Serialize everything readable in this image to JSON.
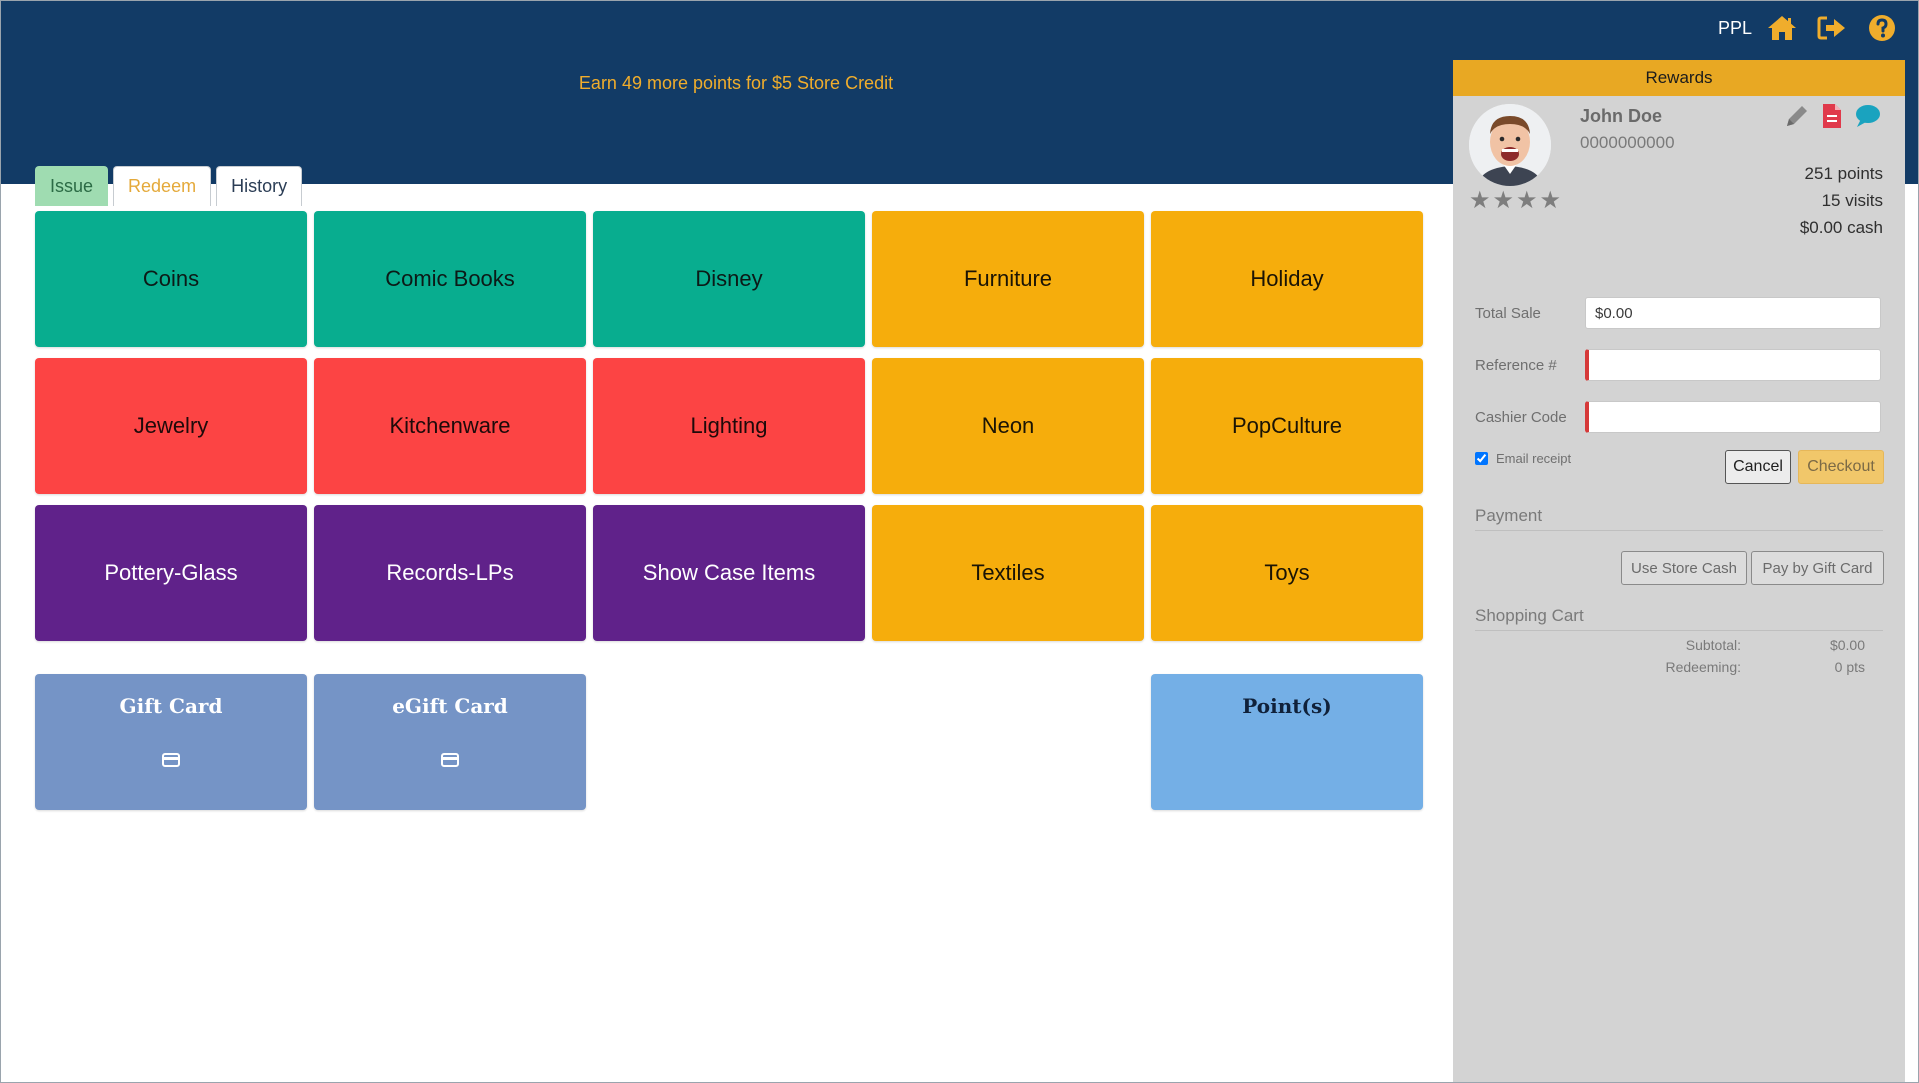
{
  "header": {
    "promo_text": "Earn 49 more points for $5 Store Credit",
    "user_label": "PPL",
    "icons": [
      "home-icon",
      "logout-icon",
      "help-icon"
    ],
    "background_color": "#123b66",
    "accent_color": "#f0ad2c"
  },
  "tabs": [
    {
      "label": "Issue",
      "active": true
    },
    {
      "label": "Redeem",
      "active": false
    },
    {
      "label": "History",
      "active": false
    }
  ],
  "categories": [
    {
      "label": "Coins",
      "color": "#08ad8f"
    },
    {
      "label": "Comic Books",
      "color": "#08ad8f"
    },
    {
      "label": "Disney",
      "color": "#08ad8f"
    },
    {
      "label": "Furniture",
      "color": "#f6ad0c"
    },
    {
      "label": "Holiday",
      "color": "#f6ad0c"
    },
    {
      "label": "Jewelry",
      "color": "#fc4444"
    },
    {
      "label": "Kitchenware",
      "color": "#fc4444"
    },
    {
      "label": "Lighting",
      "color": "#fc4444"
    },
    {
      "label": "Neon",
      "color": "#f6ad0c"
    },
    {
      "label": "PopCulture",
      "color": "#f6ad0c"
    },
    {
      "label": "Pottery-Glass",
      "color": "#60228a"
    },
    {
      "label": "Records-LPs",
      "color": "#60228a"
    },
    {
      "label": "Show Case Items",
      "color": "#60228a"
    },
    {
      "label": "Textiles",
      "color": "#f6ad0c"
    },
    {
      "label": "Toys",
      "color": "#f6ad0c"
    }
  ],
  "special_tiles": [
    {
      "label": "Gift Card",
      "icon": "credit-card-icon",
      "color": "#7594c6"
    },
    {
      "label": "eGift Card",
      "icon": "credit-card-icon",
      "color": "#7594c6"
    },
    {
      "label": "Point(s)",
      "color": "#74afe6"
    }
  ],
  "rewards": {
    "title": "Rewards",
    "customer_name": "John Doe",
    "customer_phone": "0000000000",
    "rating_stars": 4,
    "points": "251 points",
    "visits": "15 visits",
    "cash": "$0.00 cash",
    "action_icons": [
      "edit-pencil-icon",
      "document-icon",
      "chat-bubble-icon"
    ]
  },
  "form": {
    "total_sale_label": "Total Sale",
    "total_sale_value": "$0.00",
    "reference_label": "Reference #",
    "reference_value": "",
    "cashier_label": "Cashier Code",
    "cashier_value": "",
    "email_receipt_label": "Email receipt",
    "email_receipt_checked": true,
    "cancel_label": "Cancel",
    "checkout_label": "Checkout"
  },
  "payment": {
    "title": "Payment",
    "store_cash_label": "Use Store Cash",
    "gift_card_label": "Pay by Gift Card"
  },
  "cart": {
    "title": "Shopping Cart",
    "subtotal_label": "Subtotal:",
    "subtotal_value": "$0.00",
    "redeeming_label": "Redeeming:",
    "redeeming_value": "0 pts"
  }
}
